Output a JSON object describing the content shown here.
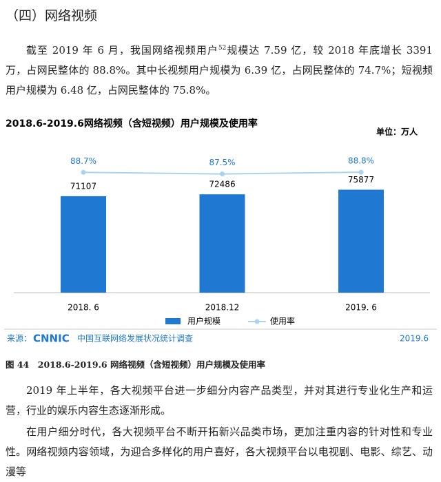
{
  "heading": "（四）网络视频",
  "paragraph1": {
    "before": "截至 2019 年 6 月，我国网络视频用户",
    "sup": "52",
    "after": "规模达 7.59 亿，较 2018 年底增长 3391 万，占网民整体的 88.8%。其中长视频用户规模为 6.39 亿，占网民整体的 74.7%；短视频用户规模为 6.48 亿，占网民整体的 75.8%。"
  },
  "chart_data": {
    "type": "bar-line",
    "title": "2018.6-2019.6网络视频（含短视频）用户规模及使用率",
    "unit": "单位：万人",
    "categories": [
      "2018. 6",
      "2018.12",
      "2019. 6"
    ],
    "series": [
      {
        "name": "用户规模",
        "type": "bar",
        "color": "#1f78d1",
        "values": [
          71107,
          72486,
          75877
        ]
      },
      {
        "name": "使用率",
        "type": "line",
        "color": "#a9d3f0",
        "values": [
          88.7,
          87.5,
          88.8
        ],
        "value_labels": [
          "88.7%",
          "87.5%",
          "88.8%"
        ]
      }
    ]
  },
  "source": {
    "label": "来源：",
    "logo": "CNNIC",
    "survey": "中国互联网络发展状况统计调查",
    "date": "2019.6"
  },
  "caption": "图 44　2018.6-2019.6 网络视频（含短视频）用户规模及使用率",
  "paragraph2": "2019 年上半年，各大视频平台进一步细分内容产品类型，并对其进行专业化生产和运营，行业的娱乐内容生态逐渐形成。",
  "paragraph3": "在用户细分时代，各大视频平台不断开拓新兴品类市场，更加注重内容的针对性和专业性。网络视频内容领域，为迎合多样化的用户喜好，各大视频平台以电视剧、电影、综艺、动漫等"
}
